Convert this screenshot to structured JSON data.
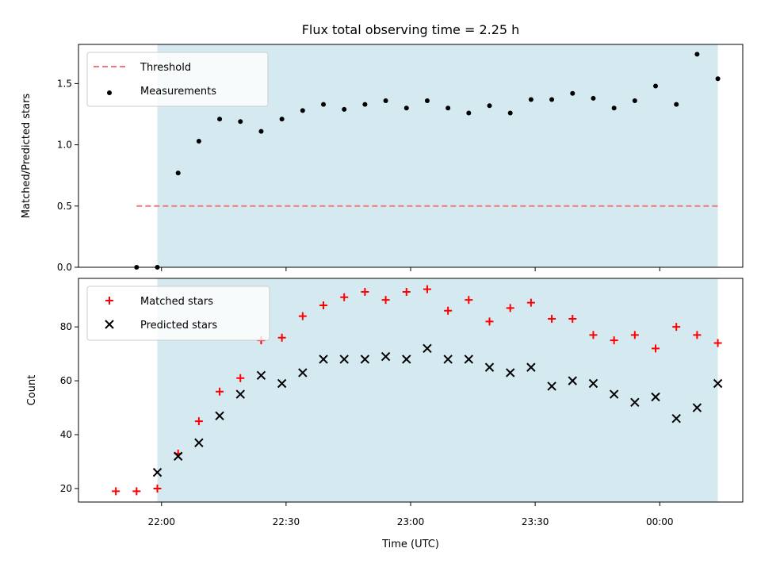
{
  "title": "Flux total observing time = 2.25 h",
  "xlabel": "Time (UTC)",
  "chart_data": [
    {
      "type": "scatter",
      "ylabel": "Matched/Predicted stars",
      "ylim": [
        0,
        1.82
      ],
      "yticks": [
        0.0,
        0.5,
        1.0,
        1.5
      ],
      "ytick_labels": [
        "0.0",
        "0.5",
        "1.0",
        "1.5"
      ],
      "shaded_region": {
        "start": "21:59",
        "end": "00:14",
        "color": "#d4eaf0"
      },
      "threshold": {
        "name": "Threshold",
        "value": 0.5,
        "start": "21:54",
        "end": "00:14",
        "color": "#f47777"
      },
      "series": [
        {
          "name": "Measurements",
          "marker": "dot",
          "color": "#000000",
          "x": [
            "21:54",
            "21:59",
            "22:04",
            "22:09",
            "22:14",
            "22:19",
            "22:24",
            "22:29",
            "22:34",
            "22:39",
            "22:44",
            "22:49",
            "22:54",
            "22:59",
            "23:04",
            "23:09",
            "23:14",
            "23:19",
            "23:24",
            "23:29",
            "23:34",
            "23:39",
            "23:44",
            "23:49",
            "23:54",
            "23:59",
            "00:04",
            "00:09",
            "00:14"
          ],
          "y": [
            0.0,
            0.0,
            0.77,
            1.03,
            1.21,
            1.19,
            1.11,
            1.21,
            1.28,
            1.33,
            1.29,
            1.33,
            1.36,
            1.3,
            1.36,
            1.3,
            1.26,
            1.32,
            1.26,
            1.37,
            1.37,
            1.42,
            1.38,
            1.3,
            1.36,
            1.48,
            1.33,
            1.74,
            1.54
          ]
        }
      ]
    },
    {
      "type": "scatter",
      "ylabel": "Count",
      "ylim": [
        15,
        98
      ],
      "yticks": [
        20,
        40,
        60,
        80
      ],
      "ytick_labels": [
        "20",
        "40",
        "60",
        "80"
      ],
      "shaded_region": {
        "start": "21:59",
        "end": "00:14",
        "color": "#d4eaf0"
      },
      "series": [
        {
          "name": "Matched stars",
          "marker": "plus",
          "color": "#ff0000",
          "x": [
            "21:49",
            "21:54",
            "21:59",
            "22:04",
            "22:09",
            "22:14",
            "22:19",
            "22:24",
            "22:29",
            "22:34",
            "22:39",
            "22:44",
            "22:49",
            "22:54",
            "22:59",
            "23:04",
            "23:09",
            "23:14",
            "23:19",
            "23:24",
            "23:29",
            "23:34",
            "23:39",
            "23:44",
            "23:49",
            "23:54",
            "23:59",
            "00:04",
            "00:09",
            "00:14"
          ],
          "y": [
            19,
            19,
            20,
            33,
            45,
            56,
            61,
            75,
            76,
            84,
            88,
            91,
            93,
            90,
            93,
            94,
            86,
            90,
            82,
            87,
            89,
            83,
            83,
            77,
            75,
            77,
            72,
            80,
            77,
            74
          ]
        },
        {
          "name": "Predicted stars",
          "marker": "x",
          "color": "#000000",
          "x": [
            "21:59",
            "22:04",
            "22:09",
            "22:14",
            "22:19",
            "22:24",
            "22:29",
            "22:34",
            "22:39",
            "22:44",
            "22:49",
            "22:54",
            "22:59",
            "23:04",
            "23:09",
            "23:14",
            "23:19",
            "23:24",
            "23:29",
            "23:34",
            "23:39",
            "23:44",
            "23:49",
            "23:54",
            "23:59",
            "00:04",
            "00:09",
            "00:14"
          ],
          "y": [
            26,
            32,
            37,
            47,
            55,
            62,
            59,
            63,
            68,
            68,
            68,
            69,
            68,
            72,
            68,
            68,
            65,
            63,
            65,
            58,
            60,
            59,
            55,
            52,
            54,
            46,
            50,
            59
          ]
        }
      ]
    }
  ],
  "x_axis": {
    "range": [
      "21:40",
      "00:20"
    ],
    "ticks": [
      "22:00",
      "22:30",
      "23:00",
      "23:30",
      "00:00"
    ]
  }
}
